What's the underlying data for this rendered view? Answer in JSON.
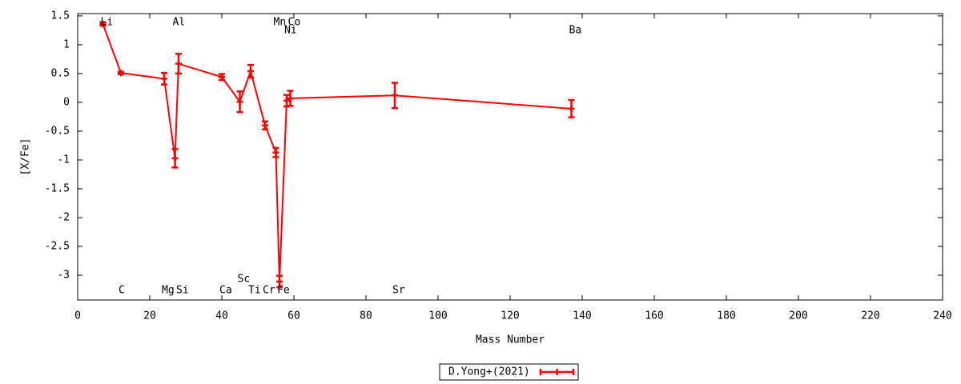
{
  "chart_data": {
    "type": "errorbar_line",
    "xlabel": "Mass Number",
    "ylabel": "[X/Fe]",
    "x": [
      7,
      12,
      24,
      27,
      28,
      40,
      45,
      48,
      52,
      55,
      56,
      58,
      59,
      88,
      137
    ],
    "series": [
      {
        "name": "D.Yong+(2021)",
        "color": "#ff0000",
        "values": [
          1.36,
          0.51,
          0.41,
          -0.97,
          0.67,
          0.44,
          0.01,
          0.54,
          -0.4,
          -0.87,
          -3.11,
          0.03,
          0.07,
          0.12,
          -0.11
        ],
        "errors": [
          0.03,
          0.02,
          0.1,
          0.16,
          0.17,
          0.05,
          0.18,
          0.11,
          0.07,
          0.08,
          0.1,
          0.1,
          0.13,
          0.22,
          0.15
        ]
      }
    ],
    "annotations": [
      {
        "text": "Li",
        "x": 7,
        "y": 1.39
      },
      {
        "text": "C",
        "x": 12,
        "y": -3.26
      },
      {
        "text": "Mg",
        "x": 24,
        "y": -3.26
      },
      {
        "text": "Al",
        "x": 27,
        "y": 1.39
      },
      {
        "text": "Si",
        "x": 28,
        "y": -3.26
      },
      {
        "text": "Ca",
        "x": 40,
        "y": -3.26
      },
      {
        "text": "Sc",
        "x": 45,
        "y": -3.07
      },
      {
        "text": "Ti",
        "x": 48,
        "y": -3.26
      },
      {
        "text": "Cr",
        "x": 52,
        "y": -3.26
      },
      {
        "text": "Mn",
        "x": 55,
        "y": 1.39
      },
      {
        "text": "Fe",
        "x": 56,
        "y": -3.26
      },
      {
        "text": "Ni",
        "x": 58,
        "y": 1.25
      },
      {
        "text": "Co",
        "x": 59,
        "y": 1.39
      },
      {
        "text": "Sr",
        "x": 88,
        "y": -3.26
      },
      {
        "text": "Ba",
        "x": 137,
        "y": 1.25
      }
    ],
    "xlim": [
      0,
      240
    ],
    "xticks": [
      0,
      20,
      40,
      60,
      80,
      100,
      120,
      140,
      160,
      180,
      200,
      220,
      240
    ],
    "ylim": [
      -3.43,
      1.54
    ],
    "yticks": [
      1.5,
      1,
      0.5,
      0,
      -0.5,
      -1,
      -1.5,
      -2,
      -2.5,
      -3
    ],
    "grid": false,
    "legend": "bottom"
  }
}
